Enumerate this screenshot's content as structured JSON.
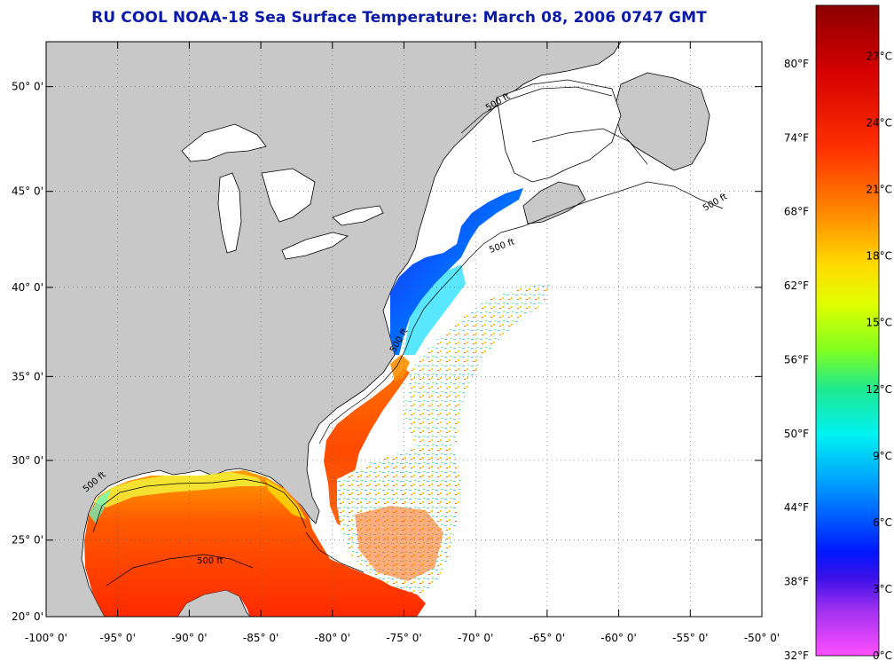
{
  "title": "RU COOL  NOAA-18  Sea Surface Temperature:  March 08, 2006 0747 GMT",
  "title_color": "#0a1aa8",
  "map": {
    "lon_range": [
      -100,
      -50
    ],
    "lat_range": [
      20,
      52
    ],
    "lon_ticks": [
      "-100° 0'",
      "-95° 0'",
      "-90° 0'",
      "-85° 0'",
      "-80° 0'",
      "-75° 0'",
      "-70° 0'",
      "-65° 0'",
      "-60° 0'",
      "-55° 0'",
      "-50° 0'"
    ],
    "lat_ticks": [
      "20° 0'",
      "25° 0'",
      "30° 0'",
      "35° 0'",
      "40° 0'",
      "45° 0'",
      "50° 0'"
    ],
    "contour_labels": [
      "500 ft",
      "500 ft",
      "500 ft",
      "500 ft",
      "500 ft",
      "500 ft"
    ],
    "land_color": "#c8c8c8",
    "lake_color": "#ffffff"
  },
  "colorbar": {
    "fahrenheit_labels": [
      "80°F",
      "74°F",
      "68°F",
      "62°F",
      "56°F",
      "50°F",
      "44°F",
      "38°F",
      "32°F"
    ],
    "celsius_labels": [
      "27°C",
      "24°C",
      "21°C",
      "18°C",
      "15°C",
      "12°C",
      "9°C",
      "6°C",
      "3°C",
      "0°C"
    ],
    "colors": [
      "#8b0000",
      "#d40000",
      "#ff2a00",
      "#ff7a00",
      "#ffd000",
      "#e8ff00",
      "#7aff00",
      "#22e07a",
      "#00f0f0",
      "#0090ff",
      "#0020ff",
      "#2a00ff",
      "#a000ff",
      "#ff40ff"
    ]
  }
}
